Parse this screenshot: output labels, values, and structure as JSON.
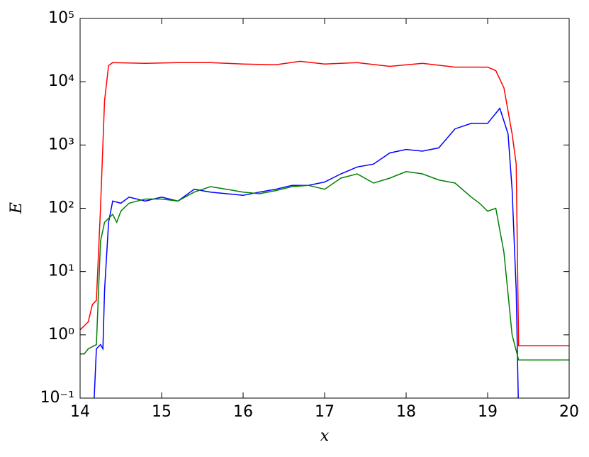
{
  "chart_data": {
    "type": "line",
    "xlabel": "x",
    "ylabel": "E",
    "log_y": true,
    "grid": false,
    "xlim": [
      14,
      20
    ],
    "xticks": [
      14,
      15,
      16,
      17,
      18,
      19,
      20
    ],
    "ylim": [
      0.1,
      100000
    ],
    "yticks": [
      {
        "value": 0.1,
        "label": "10⁻¹"
      },
      {
        "value": 1,
        "label": "10⁰"
      },
      {
        "value": 10,
        "label": "10¹"
      },
      {
        "value": 100,
        "label": "10²"
      },
      {
        "value": 1000,
        "label": "10³"
      },
      {
        "value": 10000,
        "label": "10⁴"
      },
      {
        "value": 100000,
        "label": "10⁵"
      }
    ],
    "series": [
      {
        "color": "#ff0000",
        "x": [
          14,
          14.1,
          14.15,
          14.2,
          14.25,
          14.3,
          14.35,
          14.4,
          14.8,
          15.2,
          15.6,
          16.0,
          16.4,
          16.7,
          17.0,
          17.4,
          17.8,
          18.2,
          18.6,
          18.9,
          19.0,
          19.1,
          19.2,
          19.3,
          19.35,
          19.38,
          20
        ],
        "values": [
          1.2,
          1.6,
          3,
          3.5,
          100,
          5000,
          18000,
          20000,
          19500,
          20000,
          20000,
          19000,
          18500,
          21000,
          19000,
          20000,
          17500,
          19500,
          17000,
          17000,
          17000,
          15000,
          8000,
          1500,
          500,
          0.67,
          0.67
        ]
      },
      {
        "color": "#0000ff",
        "x": [
          14.17,
          14.2,
          14.25,
          14.28,
          14.3,
          14.35,
          14.4,
          14.5,
          14.6,
          14.8,
          15.0,
          15.2,
          15.4,
          15.6,
          15.8,
          16.0,
          16.2,
          16.4,
          16.6,
          16.8,
          17.0,
          17.2,
          17.4,
          17.6,
          17.8,
          18.0,
          18.2,
          18.4,
          18.6,
          18.8,
          19.0,
          19.15,
          19.25,
          19.3,
          19.35,
          19.38
        ],
        "values": [
          0.08,
          0.6,
          0.7,
          0.6,
          5,
          60,
          130,
          120,
          150,
          130,
          150,
          130,
          200,
          180,
          170,
          160,
          180,
          200,
          230,
          230,
          260,
          350,
          450,
          500,
          750,
          850,
          800,
          900,
          1800,
          2200,
          2200,
          3800,
          1500,
          200,
          5,
          0.05
        ]
      },
      {
        "color": "#008000",
        "x": [
          14,
          14.05,
          14.1,
          14.2,
          14.25,
          14.3,
          14.4,
          14.45,
          14.5,
          14.6,
          14.7,
          14.8,
          15.0,
          15.2,
          15.4,
          15.6,
          15.8,
          16.0,
          16.2,
          16.4,
          16.6,
          16.8,
          17.0,
          17.2,
          17.4,
          17.6,
          17.8,
          18.0,
          18.2,
          18.4,
          18.6,
          18.8,
          18.9,
          19.0,
          19.1,
          19.2,
          19.3,
          19.38,
          20
        ],
        "values": [
          0.5,
          0.5,
          0.6,
          0.7,
          30,
          60,
          80,
          60,
          90,
          120,
          130,
          140,
          140,
          130,
          180,
          220,
          200,
          180,
          170,
          190,
          220,
          230,
          200,
          300,
          350,
          250,
          300,
          380,
          350,
          280,
          250,
          150,
          120,
          90,
          100,
          20,
          1,
          0.4,
          0.4
        ]
      }
    ]
  }
}
